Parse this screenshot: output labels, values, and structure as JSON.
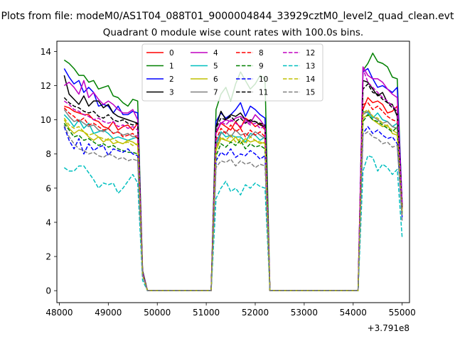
{
  "figure": {
    "suptitle": "Plots from file: modeM0/AS1T04_088T01_9000004844_33929cztM0_level2_quad_clean.evt",
    "title": "Quadrant 0 module wise count rates with 100.0s bins.",
    "x_offset_label": "+3.791e8"
  },
  "chart_data": {
    "type": "line",
    "title": "Quadrant 0 module wise count rates with 100.0s bins.",
    "xlabel": "",
    "ylabel": "",
    "x_offset": 379100000,
    "xlim": [
      47950,
      55150
    ],
    "ylim": [
      -0.7,
      14.6
    ],
    "xticks": [
      48000,
      49000,
      50000,
      51000,
      52000,
      53000,
      54000,
      55000
    ],
    "yticks": [
      0,
      2,
      4,
      6,
      8,
      10,
      12,
      14
    ],
    "grid": false,
    "legend": {
      "placement": "top-center",
      "columns": 4
    },
    "x": [
      48100,
      48200,
      48300,
      48400,
      48500,
      48600,
      48700,
      48800,
      48900,
      49000,
      49100,
      49200,
      49300,
      49400,
      49500,
      49600,
      49700,
      49800,
      49900,
      50000,
      50100,
      50200,
      50300,
      50400,
      50500,
      50600,
      50700,
      50800,
      50900,
      51000,
      51100,
      51200,
      51300,
      51400,
      51500,
      51600,
      51700,
      51800,
      51900,
      52000,
      52100,
      52200,
      52300,
      52400,
      52500,
      52600,
      52700,
      52800,
      52900,
      53000,
      53100,
      53200,
      53300,
      53400,
      53500,
      53600,
      53700,
      53800,
      53900,
      54000,
      54100,
      54200,
      54300,
      54400,
      54500,
      54600,
      54700,
      54800,
      54900,
      55000
    ],
    "series": [
      {
        "name": "0",
        "color": "#ff0000",
        "dash": "solid",
        "values": [
          10.8,
          10.7,
          10.5,
          10.4,
          10.3,
          10.3,
          10.0,
          9.9,
          9.6,
          9.5,
          9.9,
          9.4,
          9.6,
          9.7,
          9.4,
          9.8,
          1.1,
          0,
          0,
          0,
          0,
          0,
          0,
          0,
          0,
          0,
          0,
          0,
          0,
          0,
          0,
          9.2,
          9.8,
          9.6,
          9.4,
          9.9,
          9.5,
          10.1,
          9.9,
          9.6,
          9.8,
          9.4,
          0,
          0,
          0,
          0,
          0,
          0,
          0,
          0,
          0,
          0,
          0,
          0,
          0,
          0,
          0,
          0,
          0,
          0,
          0,
          10.6,
          11.3,
          11.0,
          11.1,
          10.9,
          10.4,
          10.5,
          10.8,
          4.8
        ]
      },
      {
        "name": "1",
        "color": "#008000",
        "dash": "solid",
        "values": [
          13.5,
          13.3,
          13.0,
          12.6,
          12.6,
          12.2,
          12.3,
          11.8,
          11.9,
          12.0,
          11.4,
          11.3,
          11.0,
          10.8,
          11.2,
          11.1,
          1.2,
          0,
          0,
          0,
          0,
          0,
          0,
          0,
          0,
          0,
          0,
          0,
          0,
          0,
          0,
          10.6,
          11.5,
          11.9,
          11.1,
          12.1,
          12.8,
          12.3,
          11.8,
          12.1,
          12.6,
          12.4,
          0,
          0,
          0,
          0,
          0,
          0,
          0,
          0,
          0,
          0,
          0,
          0,
          0,
          0,
          0,
          0,
          0,
          0,
          0,
          12.9,
          13.3,
          13.9,
          13.4,
          13.3,
          13.1,
          12.5,
          12.4,
          5.0
        ]
      },
      {
        "name": "2",
        "color": "#0000ff",
        "dash": "solid",
        "values": [
          13.0,
          12.5,
          12.1,
          12.3,
          11.6,
          11.9,
          11.6,
          10.8,
          10.9,
          10.8,
          10.4,
          10.8,
          10.3,
          10.3,
          10.5,
          10.4,
          1.1,
          0,
          0,
          0,
          0,
          0,
          0,
          0,
          0,
          0,
          0,
          0,
          0,
          0,
          0,
          9.9,
          10.4,
          10.1,
          10.3,
          10.6,
          11.0,
          10.2,
          10.8,
          10.6,
          10.3,
          10.1,
          0,
          0,
          0,
          0,
          0,
          0,
          0,
          0,
          0,
          0,
          0,
          0,
          0,
          0,
          0,
          0,
          0,
          0,
          0,
          12.8,
          13.0,
          12.4,
          11.9,
          12.0,
          11.8,
          11.6,
          11.9,
          5.1
        ]
      },
      {
        "name": "3",
        "color": "#000000",
        "dash": "solid",
        "values": [
          12.6,
          11.5,
          11.2,
          10.9,
          11.4,
          10.8,
          11.1,
          11.1,
          10.7,
          10.9,
          10.4,
          10.2,
          10.1,
          10.0,
          9.9,
          9.8,
          1.0,
          0,
          0,
          0,
          0,
          0,
          0,
          0,
          0,
          0,
          0,
          0,
          0,
          0,
          0,
          9.6,
          10.5,
          10.0,
          10.3,
          10.2,
          10.4,
          10.0,
          9.9,
          9.9,
          9.7,
          9.6,
          0,
          0,
          0,
          0,
          0,
          0,
          0,
          0,
          0,
          0,
          0,
          0,
          0,
          0,
          0,
          0,
          0,
          0,
          0,
          12.3,
          12.2,
          11.8,
          11.4,
          11.6,
          11.0,
          10.9,
          10.2,
          4.9
        ]
      },
      {
        "name": "4",
        "color": "#c000c0",
        "dash": "solid",
        "values": [
          12.0,
          12.2,
          11.9,
          11.5,
          12.3,
          11.3,
          11.6,
          11.2,
          10.9,
          11.1,
          10.9,
          10.6,
          10.4,
          10.4,
          10.6,
          10.0,
          1.1,
          0,
          0,
          0,
          0,
          0,
          0,
          0,
          0,
          0,
          0,
          0,
          0,
          0,
          0,
          9.3,
          9.8,
          10.0,
          9.9,
          10.1,
          10.2,
          10.0,
          9.8,
          10.3,
          10.0,
          9.6,
          0,
          0,
          0,
          0,
          0,
          0,
          0,
          0,
          0,
          0,
          0,
          0,
          0,
          0,
          0,
          0,
          0,
          0,
          0,
          13.1,
          12.6,
          12.4,
          12.4,
          12.2,
          11.8,
          11.5,
          11.3,
          5.0
        ]
      },
      {
        "name": "5",
        "color": "#00bfbf",
        "dash": "solid",
        "values": [
          10.3,
          10.0,
          9.6,
          10.0,
          9.5,
          9.8,
          9.2,
          9.3,
          9.4,
          9.2,
          8.9,
          9.0,
          8.9,
          8.8,
          8.9,
          9.0,
          1.0,
          0,
          0,
          0,
          0,
          0,
          0,
          0,
          0,
          0,
          0,
          0,
          0,
          0,
          0,
          8.6,
          9.3,
          9.0,
          9.1,
          9.0,
          9.0,
          8.7,
          9.2,
          9.1,
          8.8,
          9.0,
          0,
          0,
          0,
          0,
          0,
          0,
          0,
          0,
          0,
          0,
          0,
          0,
          0,
          0,
          0,
          0,
          0,
          0,
          0,
          10.5,
          10.4,
          10.1,
          10.4,
          10.0,
          9.9,
          9.6,
          9.8,
          4.6
        ]
      },
      {
        "name": "6",
        "color": "#bfbf00",
        "dash": "solid",
        "values": [
          10.0,
          9.5,
          9.2,
          9.4,
          9.3,
          9.0,
          8.8,
          9.0,
          8.7,
          8.9,
          8.6,
          8.7,
          8.6,
          8.8,
          8.7,
          8.5,
          1.0,
          0,
          0,
          0,
          0,
          0,
          0,
          0,
          0,
          0,
          0,
          0,
          0,
          0,
          0,
          8.2,
          8.9,
          8.8,
          8.7,
          9.0,
          8.6,
          8.9,
          8.7,
          8.8,
          8.6,
          8.7,
          0,
          0,
          0,
          0,
          0,
          0,
          0,
          0,
          0,
          0,
          0,
          0,
          0,
          0,
          0,
          0,
          0,
          0,
          0,
          10.1,
          10.3,
          10.0,
          9.8,
          9.6,
          9.7,
          9.2,
          9.1,
          4.5
        ]
      },
      {
        "name": "7",
        "color": "#808080",
        "dash": "solid",
        "values": [
          10.6,
          10.2,
          9.9,
          10.0,
          9.8,
          9.6,
          9.7,
          9.4,
          9.3,
          9.5,
          9.2,
          9.3,
          9.1,
          9.2,
          9.0,
          9.1,
          1.0,
          0,
          0,
          0,
          0,
          0,
          0,
          0,
          0,
          0,
          0,
          0,
          0,
          0,
          0,
          8.4,
          9.2,
          9.3,
          9.0,
          9.4,
          9.1,
          9.2,
          9.0,
          9.3,
          9.1,
          8.9,
          0,
          0,
          0,
          0,
          0,
          0,
          0,
          0,
          0,
          0,
          0,
          0,
          0,
          0,
          0,
          0,
          0,
          0,
          0,
          10.3,
          10.5,
          10.2,
          10.0,
          9.8,
          9.9,
          9.6,
          9.5,
          4.6
        ]
      },
      {
        "name": "8",
        "color": "#ff0000",
        "dash": "dashed",
        "values": [
          10.7,
          10.4,
          10.2,
          9.9,
          10.1,
          9.7,
          9.8,
          9.6,
          9.4,
          9.5,
          9.2,
          9.3,
          9.0,
          9.1,
          9.2,
          8.9,
          1.0,
          0,
          0,
          0,
          0,
          0,
          0,
          0,
          0,
          0,
          0,
          0,
          0,
          0,
          0,
          8.8,
          9.5,
          9.2,
          9.7,
          9.3,
          9.5,
          9.0,
          9.4,
          9.1,
          9.3,
          9.0,
          0,
          0,
          0,
          0,
          0,
          0,
          0,
          0,
          0,
          0,
          0,
          0,
          0,
          0,
          0,
          0,
          0,
          0,
          0,
          10.9,
          11.0,
          10.6,
          10.8,
          10.5,
          10.2,
          10.0,
          9.9,
          4.7
        ]
      },
      {
        "name": "9",
        "color": "#008000",
        "dash": "dashed",
        "values": [
          9.8,
          9.4,
          9.0,
          9.1,
          8.8,
          8.9,
          8.7,
          8.5,
          8.6,
          8.4,
          8.5,
          8.3,
          8.2,
          8.1,
          8.1,
          8.0,
          0.9,
          0,
          0,
          0,
          0,
          0,
          0,
          0,
          0,
          0,
          0,
          0,
          0,
          0,
          0,
          7.9,
          8.6,
          8.4,
          8.7,
          8.5,
          8.8,
          8.3,
          8.6,
          8.4,
          8.5,
          8.3,
          0,
          0,
          0,
          0,
          0,
          0,
          0,
          0,
          0,
          0,
          0,
          0,
          0,
          0,
          0,
          0,
          0,
          0,
          0,
          9.9,
          10.3,
          10.0,
          9.9,
          9.7,
          9.5,
          9.3,
          9.6,
          4.4
        ]
      },
      {
        "name": "10",
        "color": "#0000ff",
        "dash": "dashed",
        "values": [
          9.6,
          8.8,
          8.3,
          8.9,
          8.0,
          8.6,
          8.2,
          8.4,
          8.5,
          7.9,
          8.3,
          8.2,
          8.1,
          8.3,
          8.0,
          7.9,
          0.9,
          0,
          0,
          0,
          0,
          0,
          0,
          0,
          0,
          0,
          0,
          0,
          0,
          0,
          0,
          7.6,
          8.1,
          7.9,
          8.3,
          7.8,
          8.0,
          7.9,
          8.2,
          8.0,
          7.7,
          7.9,
          0,
          0,
          0,
          0,
          0,
          0,
          0,
          0,
          0,
          0,
          0,
          0,
          0,
          0,
          0,
          0,
          0,
          0,
          0,
          9.2,
          9.6,
          9.2,
          9.4,
          9.1,
          8.9,
          9.0,
          8.6,
          4.3
        ]
      },
      {
        "name": "11",
        "color": "#000000",
        "dash": "dashed",
        "values": [
          11.3,
          11.0,
          10.8,
          10.7,
          10.5,
          10.4,
          10.5,
          10.2,
          10.1,
          10.3,
          10.0,
          9.9,
          10.0,
          9.8,
          9.7,
          9.8,
          1.0,
          0,
          0,
          0,
          0,
          0,
          0,
          0,
          0,
          0,
          0,
          0,
          0,
          0,
          0,
          9.5,
          10.1,
          10.0,
          10.2,
          9.9,
          10.1,
          9.8,
          10.0,
          9.9,
          9.8,
          9.7,
          0,
          0,
          0,
          0,
          0,
          0,
          0,
          0,
          0,
          0,
          0,
          0,
          0,
          0,
          0,
          0,
          0,
          0,
          0,
          11.8,
          12.1,
          11.6,
          11.5,
          11.2,
          11.0,
          10.7,
          10.5,
          4.9
        ]
      },
      {
        "name": "12",
        "color": "#c000c0",
        "dash": "dashed",
        "values": [
          11.1,
          10.9,
          10.6,
          10.5,
          10.3,
          10.2,
          10.0,
          10.1,
          9.9,
          9.8,
          9.9,
          9.6,
          9.7,
          9.5,
          9.6,
          9.4,
          1.0,
          0,
          0,
          0,
          0,
          0,
          0,
          0,
          0,
          0,
          0,
          0,
          0,
          0,
          0,
          9.3,
          9.9,
          9.7,
          10.0,
          9.8,
          9.6,
          9.9,
          9.7,
          9.8,
          9.5,
          9.6,
          0,
          0,
          0,
          0,
          0,
          0,
          0,
          0,
          0,
          0,
          0,
          0,
          0,
          0,
          0,
          0,
          0,
          0,
          0,
          13.0,
          12.2,
          11.9,
          11.6,
          11.3,
          11.1,
          10.8,
          10.6,
          5.0
        ]
      },
      {
        "name": "13",
        "color": "#00bfbf",
        "dash": "dashed",
        "values": [
          7.2,
          7.0,
          7.0,
          7.3,
          7.3,
          6.9,
          6.5,
          6.0,
          6.3,
          6.2,
          6.3,
          5.7,
          6.0,
          6.4,
          6.8,
          6.3,
          0.6,
          0,
          0,
          0,
          0,
          0,
          0,
          0,
          0,
          0,
          0,
          0,
          0,
          0,
          0,
          5.4,
          6.0,
          6.4,
          5.8,
          6.0,
          5.6,
          6.2,
          6.0,
          6.3,
          6.1,
          6.0,
          0,
          0,
          0,
          0,
          0,
          0,
          0,
          0,
          0,
          0,
          0,
          0,
          0,
          0,
          0,
          0,
          0,
          0,
          0,
          7.0,
          7.9,
          7.8,
          7.0,
          7.4,
          7.2,
          6.8,
          7.1,
          3.1
        ]
      },
      {
        "name": "14",
        "color": "#bfbf00",
        "dash": "dashed",
        "values": [
          10.1,
          9.7,
          9.5,
          9.6,
          9.3,
          9.1,
          9.2,
          9.0,
          8.9,
          8.8,
          8.9,
          8.7,
          8.6,
          8.7,
          8.5,
          8.6,
          0.9,
          0,
          0,
          0,
          0,
          0,
          0,
          0,
          0,
          0,
          0,
          0,
          0,
          0,
          0,
          8.3,
          9.0,
          8.8,
          9.1,
          8.7,
          8.9,
          8.6,
          9.0,
          8.8,
          8.7,
          8.6,
          0,
          0,
          0,
          0,
          0,
          0,
          0,
          0,
          0,
          0,
          0,
          0,
          0,
          0,
          0,
          0,
          0,
          0,
          0,
          10.4,
          10.6,
          10.2,
          10.1,
          9.8,
          9.6,
          9.4,
          9.2,
          4.5
        ]
      },
      {
        "name": "15",
        "color": "#808080",
        "dash": "dashed",
        "values": [
          9.7,
          9.0,
          8.6,
          8.3,
          8.2,
          8.0,
          8.1,
          7.9,
          7.8,
          8.0,
          7.9,
          7.7,
          7.8,
          7.6,
          7.7,
          7.6,
          0.9,
          0,
          0,
          0,
          0,
          0,
          0,
          0,
          0,
          0,
          0,
          0,
          0,
          0,
          0,
          7.2,
          7.6,
          7.5,
          7.7,
          7.3,
          7.6,
          7.4,
          7.5,
          7.2,
          7.4,
          7.3,
          0,
          0,
          0,
          0,
          0,
          0,
          0,
          0,
          0,
          0,
          0,
          0,
          0,
          0,
          0,
          0,
          0,
          0,
          0,
          9.1,
          9.3,
          9.0,
          8.9,
          8.6,
          8.7,
          8.4,
          8.5,
          4.1
        ]
      }
    ]
  }
}
